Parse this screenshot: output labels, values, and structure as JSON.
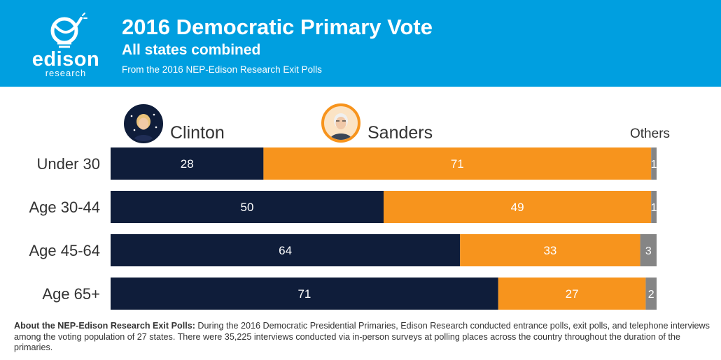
{
  "header": {
    "title": "2016 Democratic Primary Vote",
    "subtitle": "All states combined",
    "source": "From the 2016 NEP-Edison Research Exit Polls",
    "logo_word": "edison",
    "logo_sub": "research"
  },
  "colors": {
    "header_bg": "#009fe0",
    "clinton": "#0f1d3a",
    "sanders": "#f7941d",
    "others": "#858585",
    "label_text": "#333333"
  },
  "chart_data": {
    "type": "bar",
    "orientation": "horizontal",
    "stacked": true,
    "categories": [
      "Under 30",
      "Age 30-44",
      "Age 45-64",
      "Age 65+"
    ],
    "series": [
      {
        "name": "Clinton",
        "values": [
          28,
          50,
          64,
          71
        ]
      },
      {
        "name": "Sanders",
        "values": [
          71,
          49,
          33,
          27
        ]
      },
      {
        "name": "Others",
        "values": [
          1,
          1,
          3,
          2
        ]
      }
    ],
    "xlim": [
      0,
      100
    ],
    "grid": false,
    "legend": "top, above bars"
  },
  "footnote": {
    "bold": "About the NEP-Edison Research Exit Polls:",
    "text": " During the 2016 Democratic Presidential Primaries, Edison Research conducted entrance polls, exit polls, and telephone interviews among the voting population of 27 states. There were 35,225 interviews conducted via in-person surveys at polling places across the country throughout the duration of the primaries."
  }
}
